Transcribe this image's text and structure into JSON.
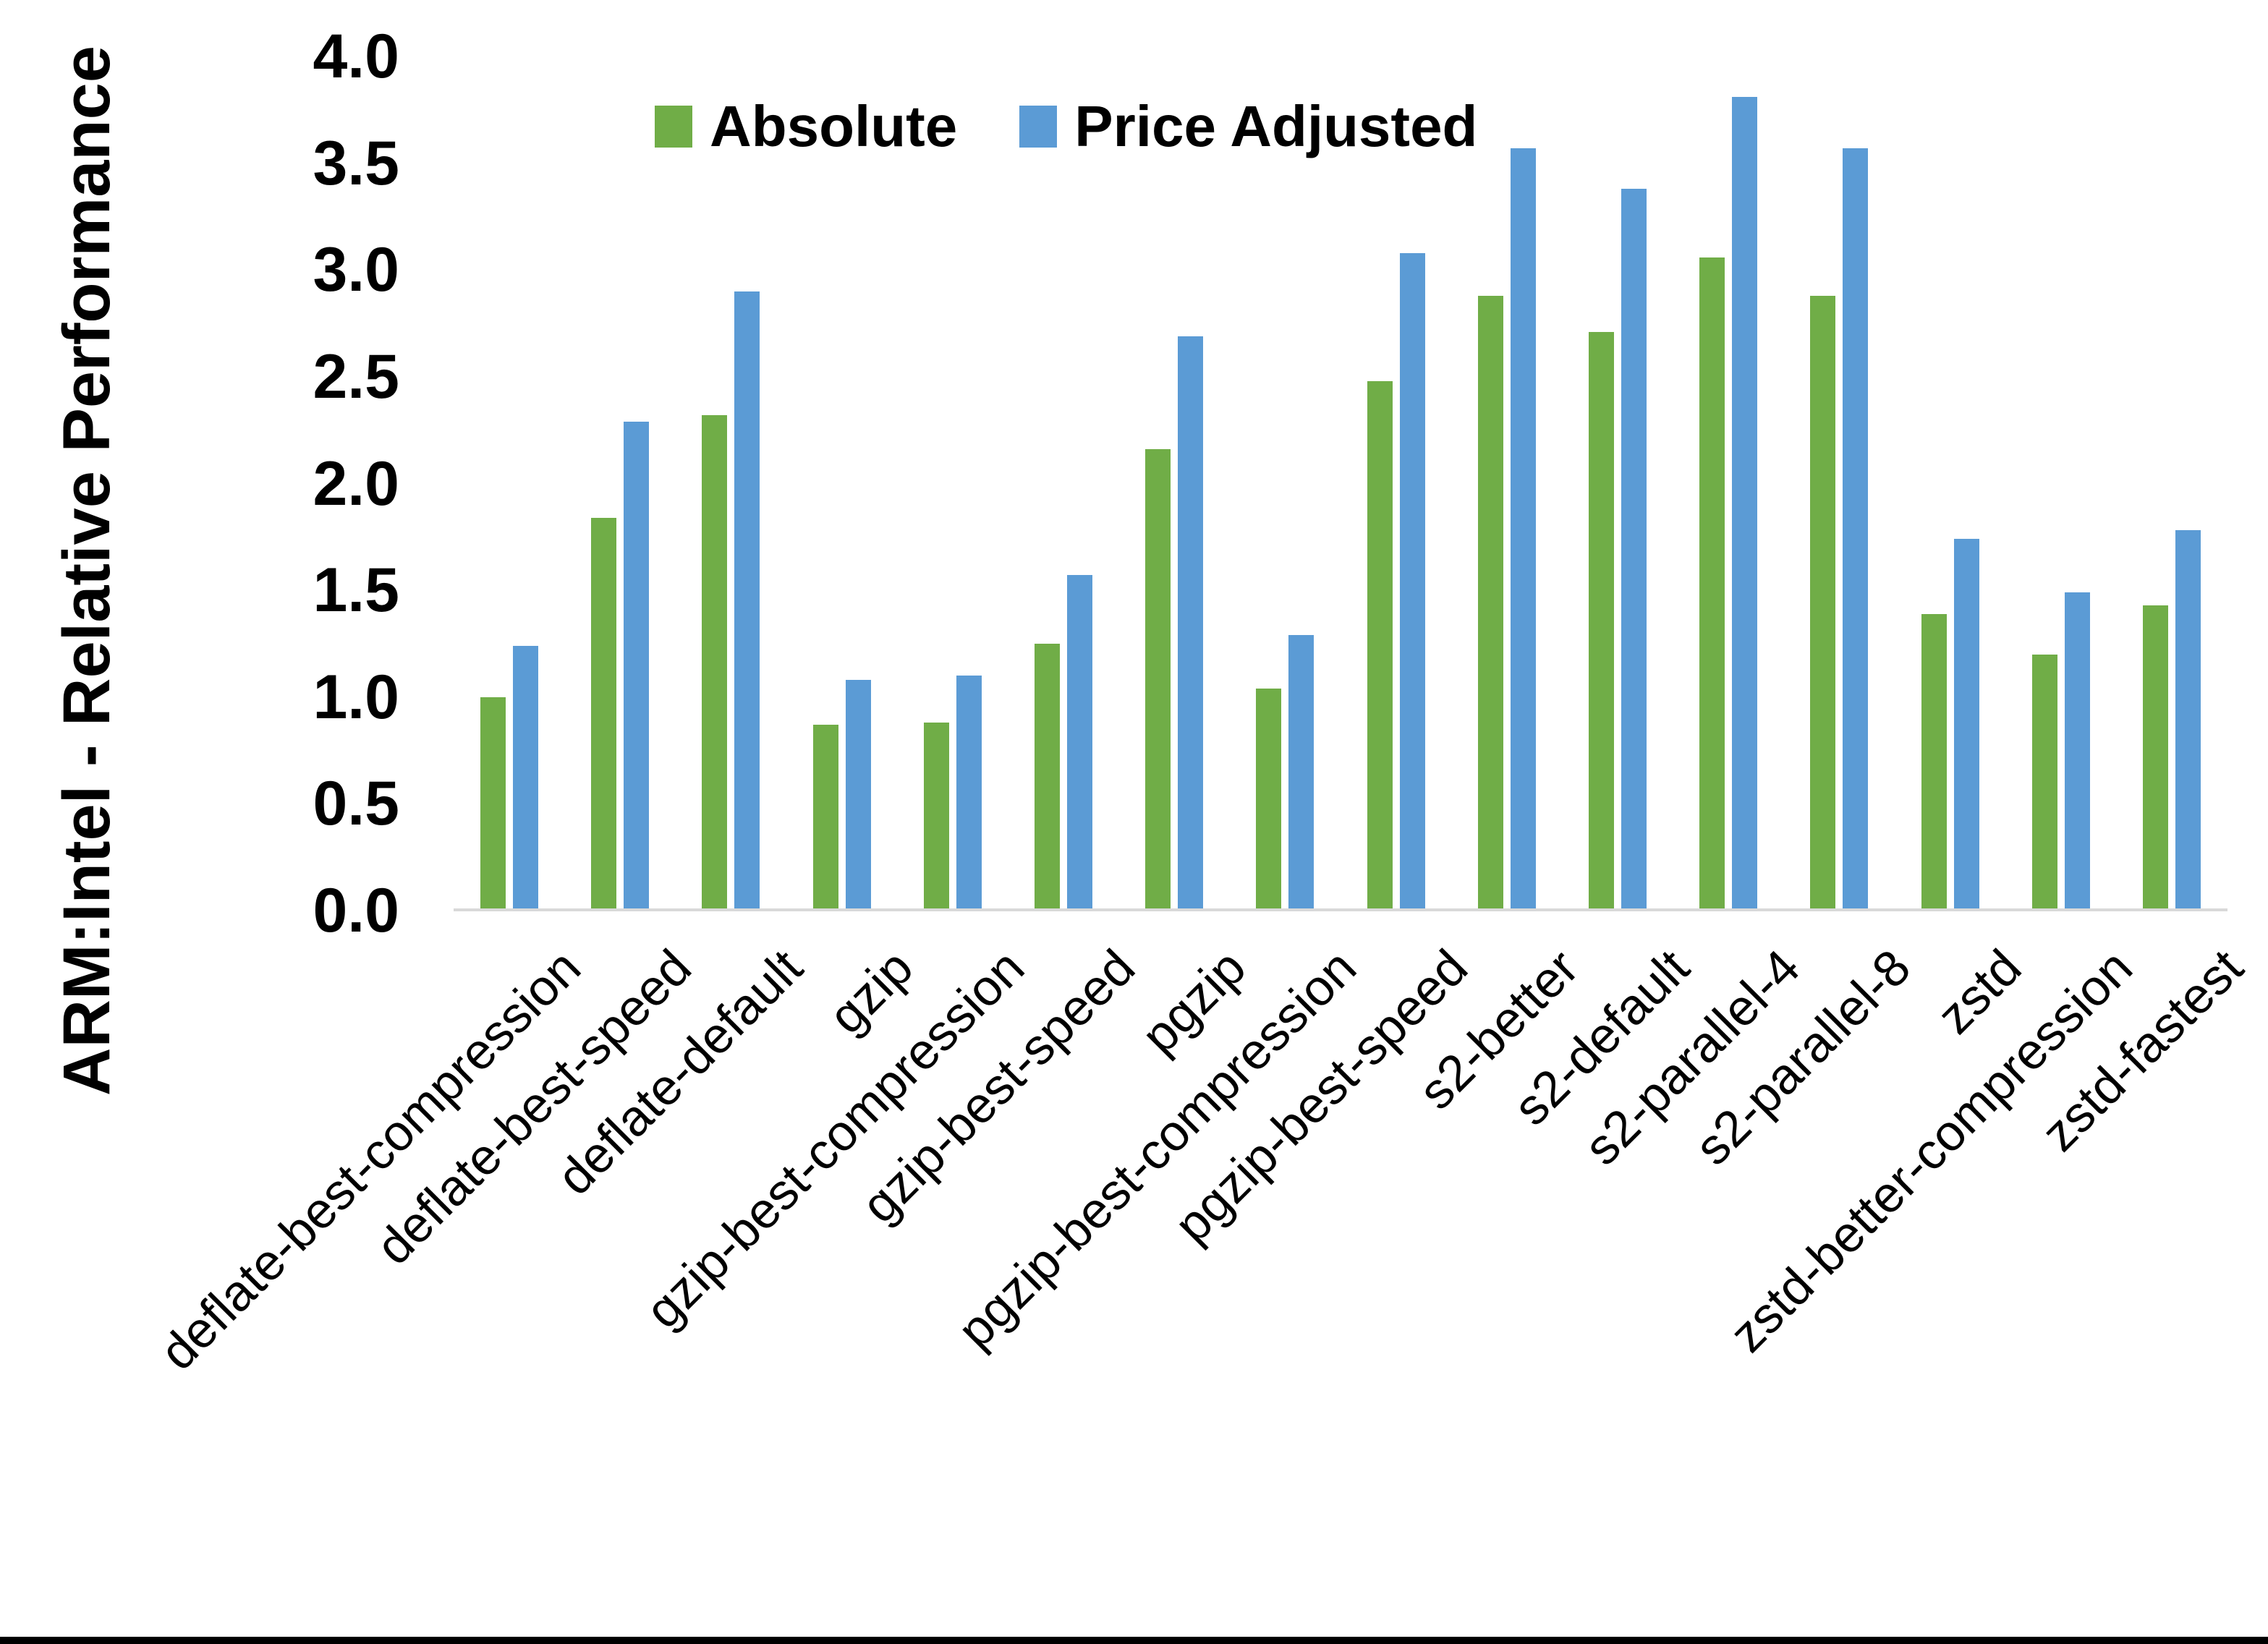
{
  "chart_data": {
    "type": "bar",
    "title": "",
    "ylabel": "ARM:Intel - Relative Performance",
    "xlabel": "",
    "ylim": [
      0.0,
      4.0
    ],
    "ytick_step": 0.5,
    "ytick_labels": [
      "0.0",
      "0.5",
      "1.0",
      "1.5",
      "2.0",
      "2.5",
      "3.0",
      "3.5",
      "4.0"
    ],
    "grid": false,
    "legend_position": "top-center",
    "axis_line_color": "#D9D9D9",
    "background": "#FFFFFF",
    "categories": [
      "deflate-best-compression",
      "deflate-best-speed",
      "deflate-default",
      "gzip",
      "gzip-best-compression",
      "gzip-best-speed",
      "pgzip",
      "pgzip-best-compression",
      "pgzip-best-speed",
      "s2-better",
      "s2-default",
      "s2-parallel-4",
      "s2-parallel-8",
      "zstd",
      "zstd-better-compression",
      "zstd-fastest"
    ],
    "series": [
      {
        "name": "Absolute",
        "color": "#70AD47",
        "values": [
          1.0,
          1.84,
          2.32,
          0.87,
          0.88,
          1.25,
          2.16,
          1.04,
          2.48,
          2.88,
          2.71,
          3.06,
          2.88,
          1.39,
          1.2,
          1.43
        ]
      },
      {
        "name": "Price Adjusted",
        "color": "#5B9BD5",
        "values": [
          1.24,
          2.29,
          2.9,
          1.08,
          1.1,
          1.57,
          2.69,
          1.29,
          3.08,
          3.57,
          3.38,
          3.81,
          3.57,
          1.74,
          1.49,
          1.78
        ]
      }
    ]
  }
}
